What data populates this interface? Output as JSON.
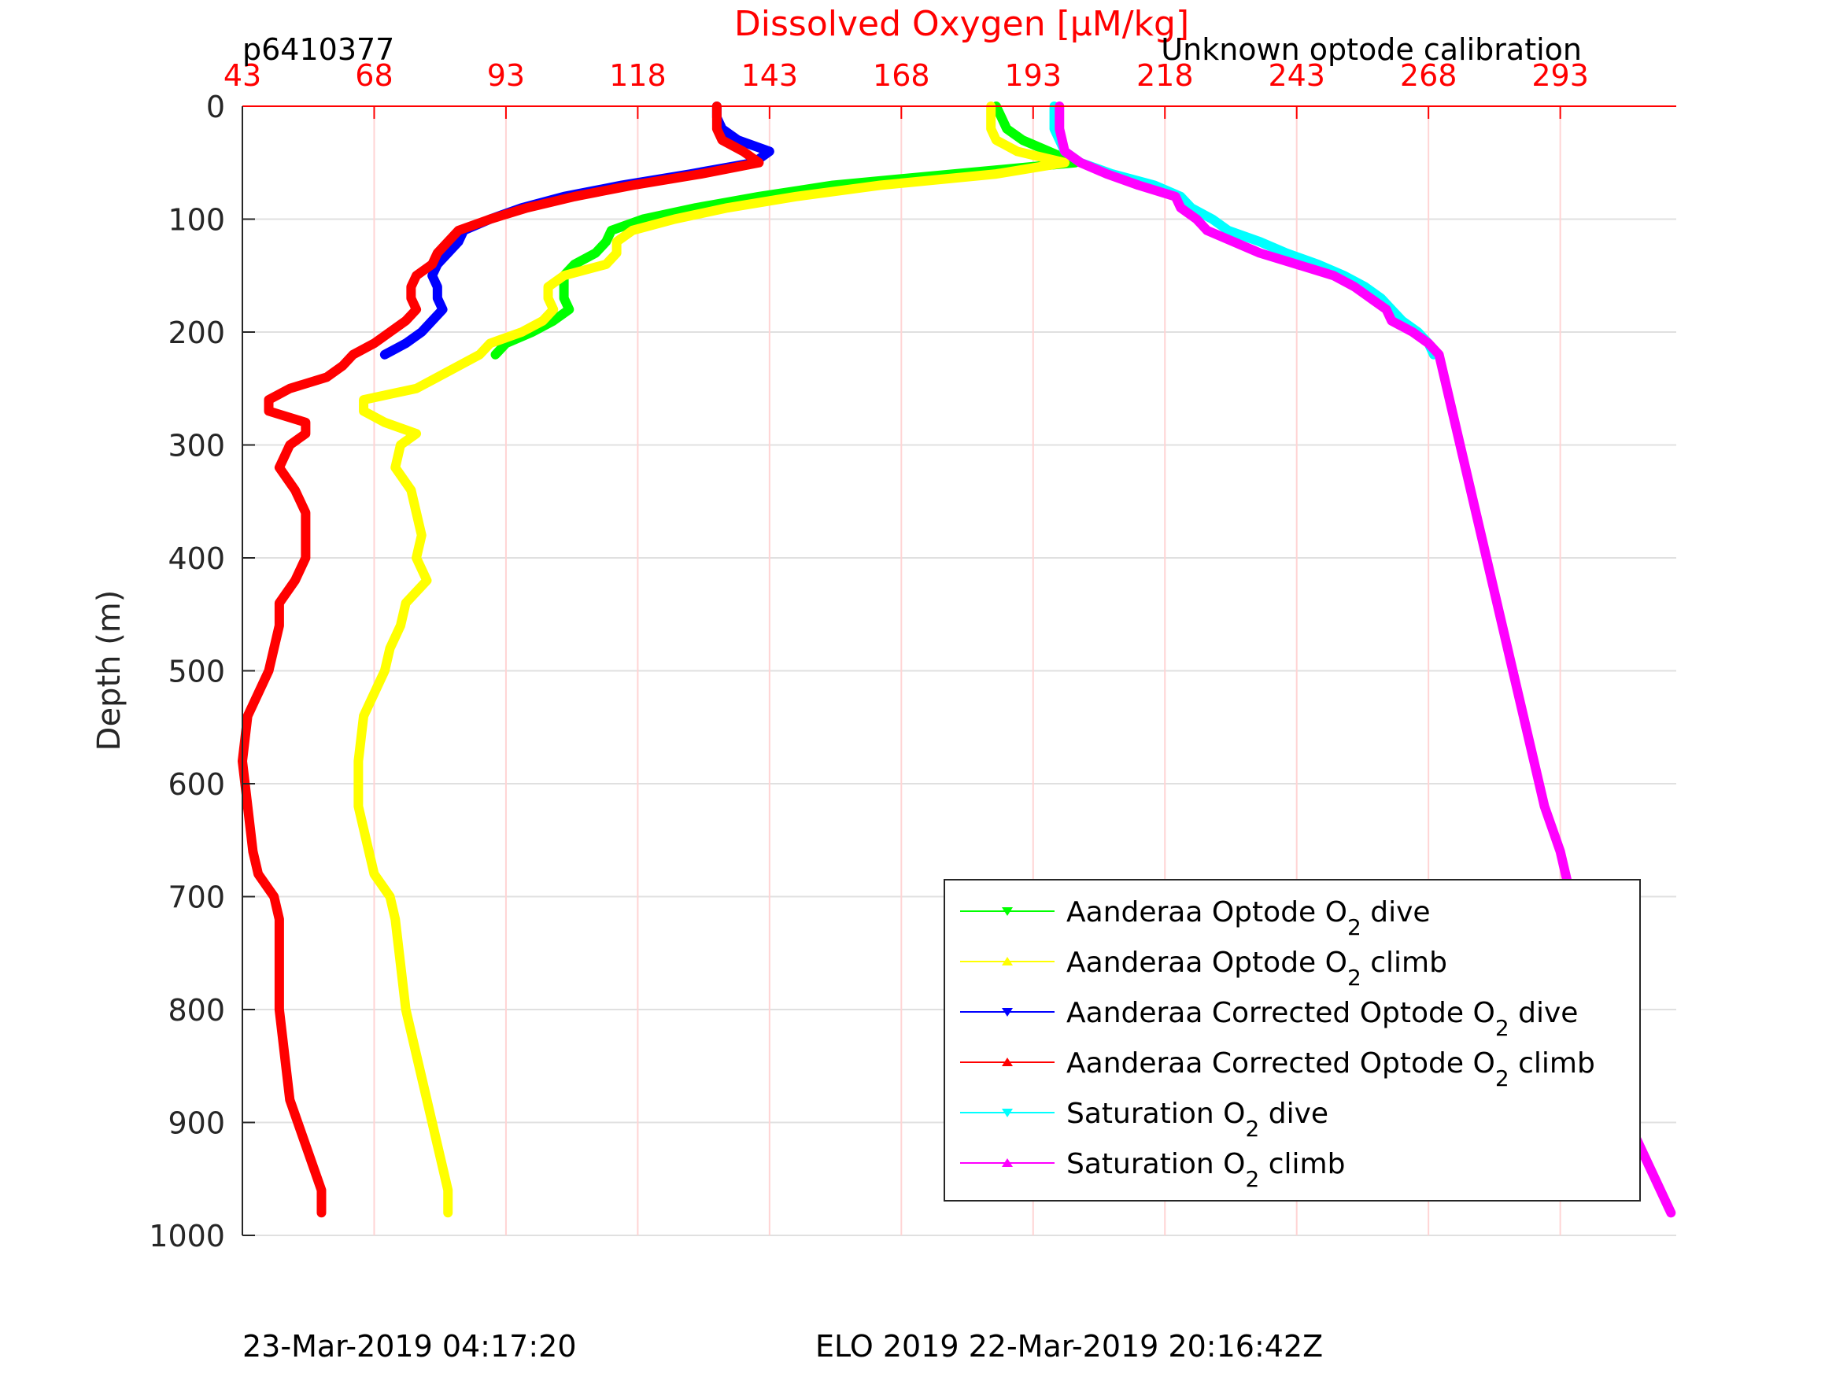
{
  "header": {
    "profile_id": "p6410377",
    "calibration_note": "Unknown optode calibration"
  },
  "footer": {
    "left_timestamp": "23-Mar-2019 04:17:20",
    "mission_timestamp": "ELO 2019 22-Mar-2019 20:16:42Z"
  },
  "colors": {
    "axis_red": "#ff0000",
    "grid_gray": "#e0e0e0",
    "grid_red": "#ffd4d4",
    "text": "#262626"
  },
  "chart_data": {
    "type": "line",
    "title": "",
    "xlabel": "Dissolved Oxygen [μM/kg]",
    "ylabel": "Depth (m)",
    "xlim": [
      43,
      315
    ],
    "ylim": [
      0,
      1000
    ],
    "y_reversed": true,
    "xticks": [
      43,
      68,
      93,
      118,
      143,
      168,
      193,
      218,
      243,
      268,
      293
    ],
    "yticks": [
      0,
      100,
      200,
      300,
      400,
      500,
      600,
      700,
      800,
      900,
      1000
    ],
    "grid": true,
    "legend_position": "bottom-right",
    "series": [
      {
        "name": "Aanderaa Optode O2 dive",
        "name_parts": [
          "Aanderaa Optode O",
          "2",
          " dive"
        ],
        "color": "#00ff00",
        "marker": "triangle-down",
        "depth": [
          0,
          10,
          20,
          30,
          40,
          50,
          60,
          70,
          80,
          90,
          100,
          110,
          120,
          130,
          140,
          150,
          160,
          170,
          180,
          190,
          200,
          210,
          220
        ],
        "value": [
          186,
          187,
          188,
          191,
          196,
          201,
          178,
          155,
          141,
          129,
          119,
          113,
          112,
          110,
          106,
          104,
          104,
          104,
          105,
          102,
          98,
          93,
          91
        ]
      },
      {
        "name": "Aanderaa Optode O2 climb",
        "name_parts": [
          "Aanderaa Optode O",
          "2",
          " climb"
        ],
        "color": "#ffff00",
        "marker": "triangle-up",
        "depth": [
          0,
          10,
          20,
          30,
          40,
          50,
          60,
          70,
          80,
          90,
          100,
          110,
          120,
          130,
          140,
          150,
          160,
          170,
          180,
          190,
          200,
          210,
          220,
          230,
          240,
          250,
          260,
          270,
          280,
          290,
          300,
          320,
          340,
          360,
          380,
          400,
          420,
          440,
          460,
          480,
          500,
          540,
          580,
          620,
          660,
          680,
          700,
          720,
          760,
          800,
          840,
          880,
          920,
          960,
          980
        ],
        "value": [
          185,
          185,
          185,
          186,
          190,
          199,
          186,
          164,
          148,
          135,
          125,
          117,
          114,
          114,
          112,
          104,
          101,
          101,
          102,
          100,
          96,
          90,
          88,
          84,
          80,
          76,
          66,
          66,
          70,
          76,
          73,
          72,
          75,
          76,
          77,
          76,
          78,
          74,
          73,
          71,
          70,
          66,
          65,
          65,
          67,
          68,
          71,
          72,
          73,
          74,
          76,
          78,
          80,
          82,
          82
        ]
      },
      {
        "name": "Aanderaa Corrected Optode O2 dive",
        "name_parts": [
          "Aanderaa Corrected Optode O",
          "2",
          " dive"
        ],
        "color": "#0000ff",
        "marker": "triangle-down",
        "depth": [
          0,
          10,
          20,
          30,
          40,
          50,
          60,
          70,
          80,
          90,
          100,
          110,
          120,
          130,
          140,
          150,
          160,
          170,
          180,
          190,
          200,
          210,
          220
        ],
        "value": [
          133,
          133,
          134,
          137,
          143,
          140,
          128,
          115,
          104,
          96,
          90,
          85,
          84,
          82,
          80,
          79,
          80,
          80,
          81,
          79,
          77,
          74,
          70
        ]
      },
      {
        "name": "Aanderaa Corrected Optode O2 climb",
        "name_parts": [
          "Aanderaa Corrected Optode O",
          "2",
          " climb"
        ],
        "color": "#ff0000",
        "marker": "triangle-up",
        "depth": [
          0,
          10,
          20,
          30,
          40,
          50,
          60,
          70,
          80,
          90,
          100,
          110,
          120,
          130,
          140,
          150,
          160,
          170,
          180,
          190,
          200,
          210,
          220,
          230,
          240,
          250,
          260,
          270,
          280,
          290,
          300,
          320,
          340,
          360,
          380,
          400,
          420,
          440,
          460,
          480,
          500,
          540,
          580,
          620,
          660,
          680,
          700,
          720,
          760,
          800,
          840,
          880,
          920,
          960,
          980
        ],
        "value": [
          133,
          133,
          133,
          134,
          138,
          141,
          130,
          117,
          106,
          97,
          90,
          84,
          82,
          80,
          79,
          76,
          75,
          75,
          76,
          74,
          71,
          68,
          64,
          62,
          59,
          52,
          48,
          48,
          55,
          55,
          52,
          50,
          53,
          55,
          55,
          55,
          53,
          50,
          50,
          49,
          48,
          44,
          43,
          44,
          45,
          46,
          49,
          50,
          50,
          50,
          51,
          52,
          55,
          58,
          58
        ]
      },
      {
        "name": "Saturation O2 dive",
        "name_parts": [
          "Saturation O",
          "2",
          " dive"
        ],
        "color": "#00ffff",
        "marker": "triangle-down",
        "depth": [
          0,
          20,
          40,
          50,
          60,
          70,
          80,
          90,
          100,
          110,
          120,
          130,
          140,
          150,
          160,
          170,
          180,
          190,
          200,
          210,
          220
        ],
        "value": [
          197,
          197,
          199,
          202,
          208,
          216,
          221,
          223,
          227,
          230,
          236,
          241,
          247,
          252,
          256,
          259,
          261,
          263,
          266,
          268,
          269
        ]
      },
      {
        "name": "Saturation O2 climb",
        "name_parts": [
          "Saturation O",
          "2",
          " climb"
        ],
        "color": "#ff00ff",
        "marker": "triangle-up",
        "depth": [
          0,
          20,
          40,
          50,
          60,
          70,
          80,
          90,
          100,
          110,
          120,
          130,
          140,
          150,
          160,
          170,
          180,
          190,
          200,
          210,
          220,
          240,
          260,
          280,
          300,
          340,
          380,
          420,
          460,
          500,
          540,
          580,
          620,
          660,
          700,
          740,
          780,
          820,
          860,
          900,
          940,
          980
        ],
        "value": [
          198,
          198,
          199,
          202,
          207,
          213,
          220,
          221,
          224,
          226,
          231,
          236,
          243,
          250,
          254,
          257,
          260,
          261,
          265,
          268,
          270,
          271,
          272,
          273,
          274,
          276,
          278,
          280,
          282,
          284,
          286,
          288,
          290,
          293,
          295,
          298,
          300,
          302,
          304,
          306,
          310,
          314
        ]
      }
    ]
  }
}
